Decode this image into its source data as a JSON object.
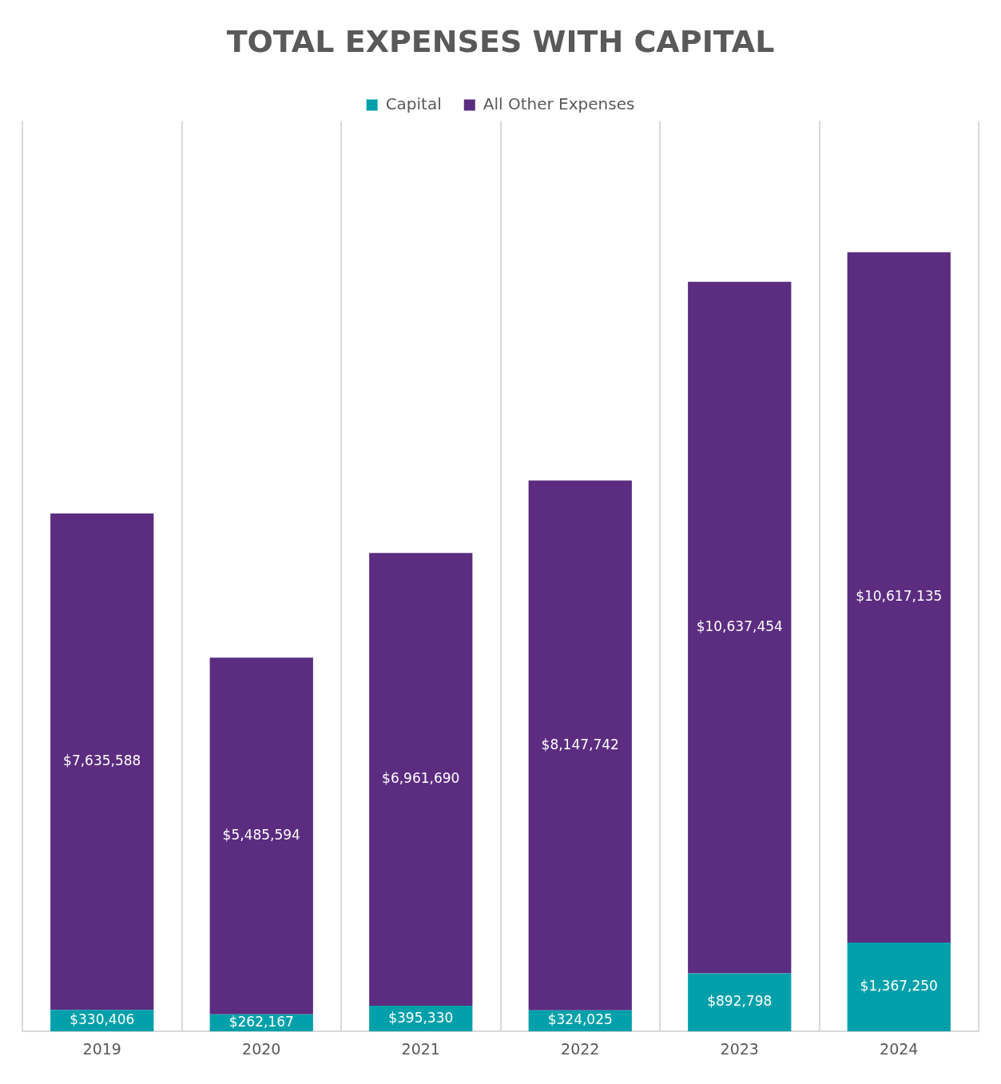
{
  "chart_data": {
    "type": "bar",
    "title": "TOTAL EXPENSES WITH CAPITAL",
    "categories": [
      "2019",
      "2020",
      "2021",
      "2022",
      "2023",
      "2024"
    ],
    "stacked": true,
    "legend": "top",
    "grid": "x",
    "series": [
      {
        "name": "Capital",
        "color": "#00a0aa",
        "values": [
          330406,
          262167,
          395330,
          324025,
          892798,
          1367250
        ],
        "value_labels": [
          "$330,406",
          "$262,167",
          "$395,330",
          "$324,025",
          "$892,798",
          "$1,367,250"
        ]
      },
      {
        "name": "All Other Expenses",
        "color": "#5b2c80",
        "values": [
          7635588,
          5485594,
          6961690,
          8147742,
          10637454,
          10617135
        ],
        "value_labels": [
          "$7,635,588",
          "$5,485,594",
          "$6,961,690",
          "$8,147,742",
          "$10,637,454",
          "$10,617,135"
        ]
      }
    ]
  }
}
